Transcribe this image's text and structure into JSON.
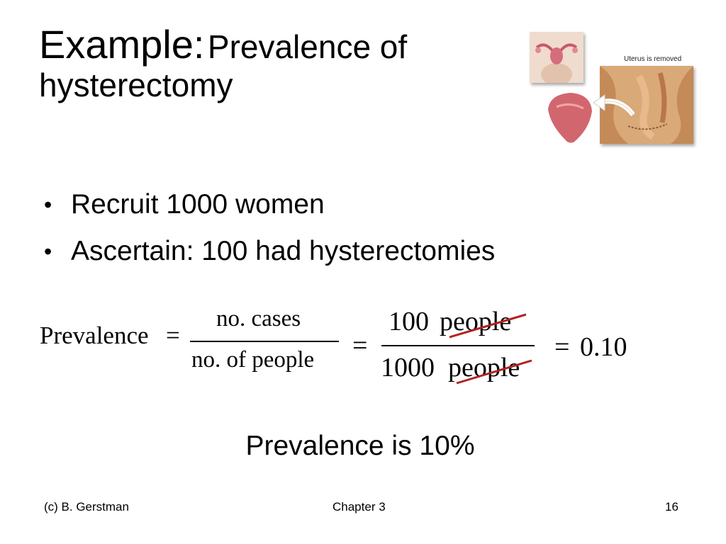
{
  "title": {
    "lead": "Example:",
    "rest": "Prevalence of",
    "line2": "hysterectomy"
  },
  "bullets": [
    {
      "marker": "•",
      "text": "Recruit 1000 women"
    },
    {
      "marker": "•",
      "text": "Ascertain: 100 had hysterectomies"
    }
  ],
  "formula": {
    "lhs": "Prevalence",
    "eq": "=",
    "frac1_num": "no. cases",
    "frac1_den": "no. of people",
    "frac2_num_value": "100",
    "frac2_num_unit": "people",
    "frac2_den_value": "1000",
    "frac2_den_unit": "people",
    "result": "0.10",
    "strike_color": "#b22222"
  },
  "conclusion": "Prevalence is 10%",
  "illustration": {
    "caption": "Uterus is removed",
    "icons": [
      "uterus-icon",
      "removed-uterus-icon",
      "surgery-view-icon",
      "arrow-icon"
    ]
  },
  "footer": {
    "left": "(c) B. Gerstman",
    "center": "Chapter 3",
    "right": "16"
  }
}
